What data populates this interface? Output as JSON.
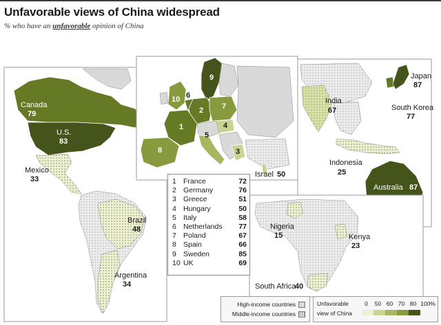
{
  "title": "Unfavorable views of China widespread",
  "subtitle_pre": "% who have an ",
  "subtitle_em": "unfavorable",
  "subtitle_post": " opinion of China",
  "colors": {
    "c20": "#eef0d6",
    "c50": "#c9d491",
    "c60": "#a7b661",
    "c70": "#889a3e",
    "c80": "#667a26",
    "c100": "#45541a",
    "land_high_income": "#d9d9d9",
    "land_middle_income": "#ececec",
    "water": "#ffffff"
  },
  "countries": {
    "canada": {
      "name": "Canada",
      "value": "79"
    },
    "us": {
      "name": "U.S.",
      "value": "83"
    },
    "mexico": {
      "name": "Mexico",
      "value": "33"
    },
    "brazil": {
      "name": "Brazil",
      "value": "48"
    },
    "argentina": {
      "name": "Argentina",
      "value": "34"
    },
    "israel": {
      "name": "Israel",
      "value": "50"
    },
    "japan": {
      "name": "Japan",
      "value": "87"
    },
    "south_korea": {
      "name": "South Korea",
      "value": "77"
    },
    "india": {
      "name": "India",
      "value": "67"
    },
    "indonesia": {
      "name": "Indonesia",
      "value": "25"
    },
    "australia": {
      "name": "Australia",
      "value": "87"
    },
    "nigeria": {
      "name": "Nigeria",
      "value": "15"
    },
    "kenya": {
      "name": "Kenya",
      "value": "23"
    },
    "south_africa": {
      "name": "South Africa",
      "value": "40"
    }
  },
  "europe_marker_numbers": [
    "1",
    "2",
    "3",
    "4",
    "5",
    "6",
    "7",
    "8",
    "9",
    "10"
  ],
  "europe_table": [
    {
      "n": "1",
      "country": "France",
      "value": "72"
    },
    {
      "n": "2",
      "country": "Germany",
      "value": "76"
    },
    {
      "n": "3",
      "country": "Greece",
      "value": "51"
    },
    {
      "n": "4",
      "country": "Hungary",
      "value": "50"
    },
    {
      "n": "5",
      "country": "Italy",
      "value": "58"
    },
    {
      "n": "6",
      "country": "Netherlands",
      "value": "77"
    },
    {
      "n": "7",
      "country": "Poland",
      "value": "67"
    },
    {
      "n": "8",
      "country": "Spain",
      "value": "66"
    },
    {
      "n": "9",
      "country": "Sweden",
      "value": "85"
    },
    {
      "n": "10",
      "country": "UK",
      "value": "69"
    }
  ],
  "legend": {
    "high_income": "High-income countries",
    "middle_income": "Middle-income countries",
    "scale_label_1": "Unfavorable",
    "scale_label_2": "view of China",
    "ticks": [
      "0",
      "50",
      "60",
      "70",
      "80",
      "100%"
    ]
  }
}
